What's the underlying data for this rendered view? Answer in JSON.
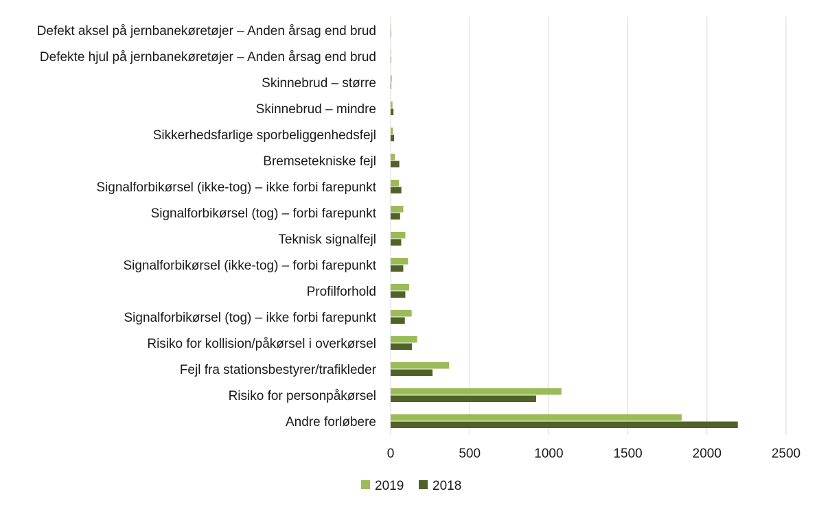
{
  "chart_data": {
    "type": "bar",
    "orientation": "horizontal",
    "title": "",
    "xlabel": "",
    "ylabel": "",
    "categories": [
      "Defekt aksel på jernbanekøretøjer – Anden årsag end brud",
      "Defekte hjul på jernbanekøretøjer – Anden årsag end brud",
      "Skinnebrud – større",
      "Skinnebrud – mindre",
      "Sikkerhedsfarlige sporbeliggenhedsfejl",
      "Bremsetekniske fejl",
      "Signalforbikørsel (ikke-tog) – ikke forbi farepunkt",
      "Signalforbikørsel (tog) – forbi farepunkt",
      "Teknisk signalfejl",
      "Signalforbikørsel (ikke-tog) – forbi farepunkt",
      "Profilforhold",
      "Signalforbikørsel (tog) – ikke forbi farepunkt",
      "Risiko for kollision/påkørsel i overkørsel",
      "Fejl fra stationsbestyrer/trafikleder",
      "Risiko for personpåkørsel",
      "Andre forløbere"
    ],
    "series": [
      {
        "name": "2019",
        "color": "#9bbb59",
        "values": [
          1,
          2,
          7,
          12,
          15,
          27,
          52,
          80,
          93,
          110,
          117,
          133,
          168,
          370,
          1080,
          1840
        ]
      },
      {
        "name": "2018",
        "color": "#4f6228",
        "values": [
          1,
          2,
          4,
          18,
          22,
          55,
          68,
          60,
          67,
          80,
          93,
          90,
          135,
          265,
          920,
          2195
        ]
      }
    ],
    "xlim": [
      0,
      2500
    ],
    "xticks": [
      "0",
      "500",
      "1000",
      "1500",
      "2000",
      "2500"
    ],
    "grid": "vertical",
    "legend": "bottom-center"
  }
}
